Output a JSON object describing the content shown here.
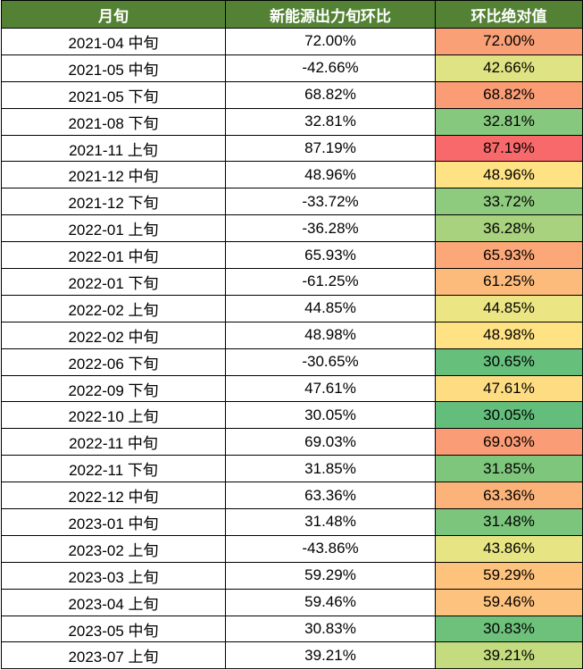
{
  "table": {
    "header": [
      "月旬",
      "新能源出力旬环比",
      "环比绝对值"
    ],
    "header_color": "#548235",
    "rows": [
      [
        "2021-04 中旬",
        "72.00%",
        "72.00%"
      ],
      [
        "2021-05 中旬",
        "-42.66%",
        "42.66%"
      ],
      [
        "2021-05 下旬",
        "68.82%",
        "68.82%"
      ],
      [
        "2021-08 下旬",
        "32.81%",
        "32.81%"
      ],
      [
        "2021-11 上旬",
        "87.19%",
        "87.19%"
      ],
      [
        "2021-12 中旬",
        "48.96%",
        "48.96%"
      ],
      [
        "2021-12 下旬",
        "-33.72%",
        "33.72%"
      ],
      [
        "2022-01 上旬",
        "-36.28%",
        "36.28%"
      ],
      [
        "2022-01 中旬",
        "65.93%",
        "65.93%"
      ],
      [
        "2022-01 下旬",
        "-61.25%",
        "61.25%"
      ],
      [
        "2022-02 上旬",
        "44.85%",
        "44.85%"
      ],
      [
        "2022-02 中旬",
        "48.98%",
        "48.98%"
      ],
      [
        "2022-06 下旬",
        "-30.65%",
        "30.65%"
      ],
      [
        "2022-09 下旬",
        "47.61%",
        "47.61%"
      ],
      [
        "2022-10 上旬",
        "30.05%",
        "30.05%"
      ],
      [
        "2022-11 中旬",
        "69.03%",
        "69.03%"
      ],
      [
        "2022-11 下旬",
        "31.85%",
        "31.85%"
      ],
      [
        "2022-12 中旬",
        "63.36%",
        "63.36%"
      ],
      [
        "2023-01 中旬",
        "31.48%",
        "31.48%"
      ],
      [
        "2023-02 上旬",
        "-43.86%",
        "43.86%"
      ],
      [
        "2023-03 上旬",
        "59.29%",
        "59.29%"
      ],
      [
        "2023-04 上旬",
        "59.46%",
        "59.46%"
      ],
      [
        "2023-05 中旬",
        "30.83%",
        "30.83%"
      ],
      [
        "2023-07 上旬",
        "39.21%",
        "39.21%"
      ]
    ],
    "cell_colors": [
      "#f9a077",
      "#e0e383",
      "#fa9d75",
      "#86c87d",
      "#f8696b",
      "#fee283",
      "#8fcb7e",
      "#a9d27f",
      "#fba777",
      "#fcbb7b",
      "#ebe583",
      "#fee283",
      "#66bf7b",
      "#fedd82",
      "#63be7b",
      "#fa9c75",
      "#7ec67c",
      "#fcb37a",
      "#7bc57c",
      "#e6e483",
      "#fdc37d",
      "#fdc27d",
      "#6dc17b",
      "#c4db7f"
    ]
  }
}
